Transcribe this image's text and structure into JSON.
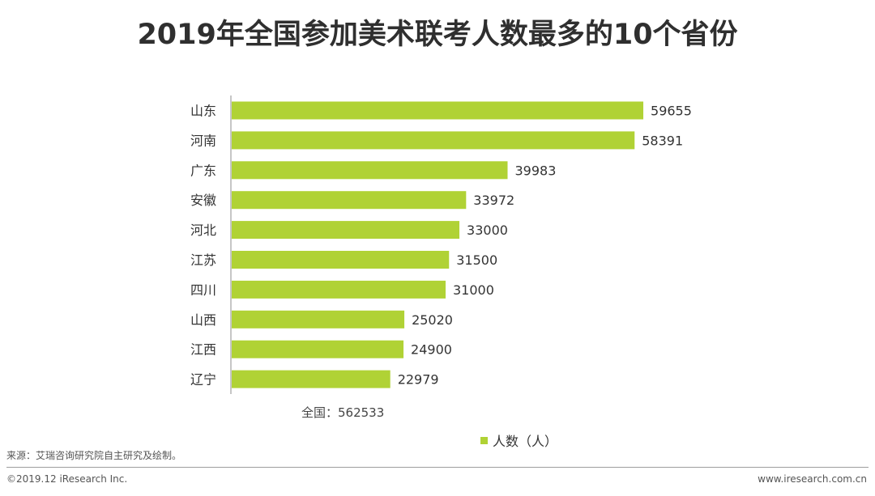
{
  "chart_data": {
    "type": "bar",
    "orientation": "horizontal",
    "title": "2019年全国参加美术联考人数最多的10个省份",
    "categories": [
      "山东",
      "河南",
      "广东",
      "安徽",
      "河北",
      "江苏",
      "四川",
      "山西",
      "江西",
      "辽宁"
    ],
    "series": [
      {
        "name": "人数（人）",
        "values": [
          59655,
          58391,
          39983,
          33972,
          33000,
          31500,
          31000,
          25020,
          24900,
          22979
        ]
      }
    ],
    "xlim": [
      0,
      62000
    ],
    "legend": "bottom-center",
    "grid": false,
    "total_label": "全国：562533",
    "color": "#b0d235"
  },
  "footer": {
    "source": "来源：艾瑞咨询研究院自主研究及绘制。",
    "copyright": "©2019.12 iResearch Inc.",
    "website": "www.iresearch.com.cn"
  }
}
